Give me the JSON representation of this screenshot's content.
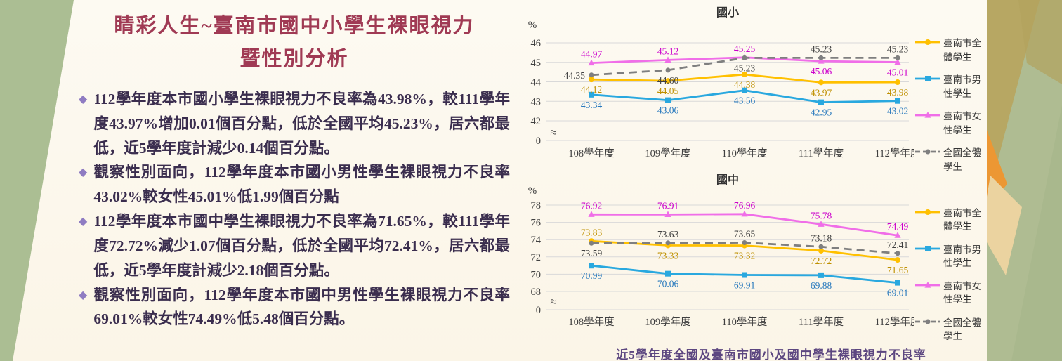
{
  "slide": {
    "title_line1": "睛彩人生~臺南市國中小學生裸眼視力",
    "title_line2": "暨性別分析",
    "bullet_glyph": "◆",
    "bullets": [
      "112學年度本市國小學生裸眼視力不良率為43.98%，較111學年度43.97%增加0.01個百分點，低於全國平均45.23%，居六都最低，近5學年度計減少0.14個百分點。",
      "觀察性別面向，112學年度本市國小男性學生裸眼視力不良率43.02%較女性45.01%低1.99個百分點",
      "112學年度本市國中學生裸眼視力不良率為71.65%，較111學年度72.72%減少1.07個百分點，低於全國平均72.41%，居六都最低，近5學年度計減少2.18個百分點。",
      "觀察性別面向，112學年度本市國中男性學生裸眼視力不良率69.01%較女性74.49%低5.48個百分點。"
    ],
    "caption": "近5學年度全國及臺南市國小及國中學生裸眼視力不良率"
  },
  "colors": {
    "title": "#a03a54",
    "body_text": "#3a2d4e",
    "bullet": "#8f7cc2",
    "caption": "#5c4680",
    "grid": "#d9d9d9",
    "tick_text": "#404040"
  },
  "chart_data": [
    {
      "type": "line",
      "title": "國小",
      "y_unit": "%",
      "categories": [
        "108學年度",
        "109學年度",
        "110學年度",
        "111學年度",
        "112學年度"
      ],
      "yticks": [
        46,
        45,
        44,
        43,
        42
      ],
      "ylim": [
        42,
        46
      ],
      "zero_label": "0",
      "axis_break_symbol": "≈",
      "grid": true,
      "legend_position": "right",
      "series": [
        {
          "name": "臺南市全體學生",
          "color": "#FFC000",
          "label_color": "#BF9000",
          "marker": "circle",
          "dash": "solid",
          "values": [
            44.12,
            44.05,
            44.38,
            43.97,
            43.98
          ],
          "label_side": [
            "below",
            "below",
            "below",
            "below",
            "below"
          ]
        },
        {
          "name": "臺南市男性學生",
          "color": "#29A8DF",
          "label_color": "#2879BD",
          "marker": "square",
          "dash": "solid",
          "values": [
            43.34,
            43.06,
            43.56,
            42.95,
            43.02
          ],
          "label_side": [
            "below",
            "below",
            "below",
            "below",
            "below"
          ]
        },
        {
          "name": "臺南市女性學生",
          "color": "#F06EE8",
          "label_color": "#CC00CC",
          "marker": "triangle",
          "dash": "solid",
          "values": [
            44.97,
            45.12,
            45.25,
            45.06,
            45.01
          ],
          "label_side": [
            "above",
            "above",
            "above",
            "below",
            "below"
          ]
        },
        {
          "name": "全國全體學生",
          "color": "#7F7F7F",
          "label_color": "#404040",
          "marker": "circle",
          "dash": "dash",
          "values": [
            44.35,
            44.6,
            45.23,
            45.23,
            45.23
          ],
          "label_side": [
            "left",
            "below",
            "below",
            "above",
            "above"
          ]
        }
      ]
    },
    {
      "type": "line",
      "title": "國中",
      "y_unit": "%",
      "categories": [
        "108學年度",
        "109學年度",
        "110學年度",
        "111學年度",
        "112學年度"
      ],
      "yticks": [
        78,
        76,
        74,
        72,
        70,
        68
      ],
      "ylim": [
        68,
        78
      ],
      "zero_label": "0",
      "axis_break_symbol": "≈",
      "grid": true,
      "legend_position": "right",
      "series": [
        {
          "name": "臺南市全體學生",
          "color": "#FFC000",
          "label_color": "#BF9000",
          "marker": "circle",
          "dash": "solid",
          "values": [
            73.83,
            73.33,
            73.32,
            72.72,
            71.65
          ],
          "label_side": [
            "above",
            "below",
            "below",
            "below",
            "below"
          ]
        },
        {
          "name": "臺南市男性學生",
          "color": "#29A8DF",
          "label_color": "#2879BD",
          "marker": "square",
          "dash": "solid",
          "values": [
            70.99,
            70.06,
            69.91,
            69.88,
            69.01
          ],
          "label_side": [
            "below",
            "below",
            "below",
            "below",
            "below"
          ]
        },
        {
          "name": "臺南市女性學生",
          "color": "#F06EE8",
          "label_color": "#CC00CC",
          "marker": "triangle",
          "dash": "solid",
          "values": [
            76.92,
            76.91,
            76.96,
            75.78,
            74.49
          ],
          "label_side": [
            "above",
            "above",
            "above",
            "above",
            "above"
          ]
        },
        {
          "name": "全國全體學生",
          "color": "#7F7F7F",
          "label_color": "#404040",
          "marker": "circle",
          "dash": "dash",
          "values": [
            73.59,
            73.63,
            73.65,
            73.18,
            72.41
          ],
          "label_side": [
            "below",
            "above",
            "above",
            "above",
            "above"
          ]
        }
      ]
    }
  ]
}
